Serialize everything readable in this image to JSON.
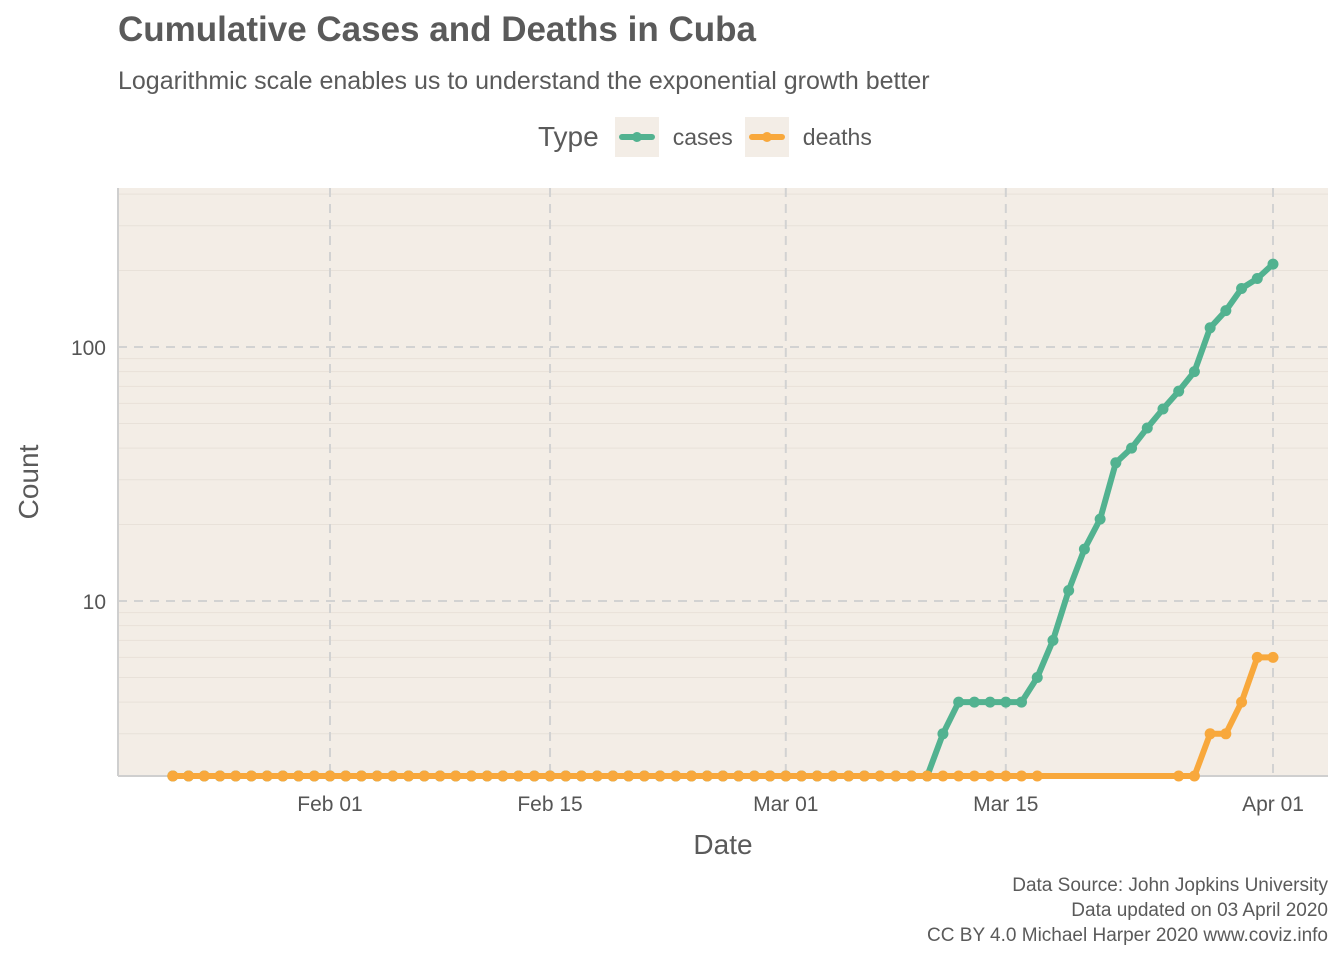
{
  "title": "Cumulative Cases and Deaths in Cuba",
  "subtitle": "Logarithmic scale enables us to understand the exponential growth better",
  "legend": {
    "title": "Type",
    "items": [
      {
        "label": "cases",
        "color": "#52b290"
      },
      {
        "label": "deaths",
        "color": "#f8a83c"
      }
    ]
  },
  "caption": {
    "line1": "Data Source: John Jopkins University",
    "line2": "Data updated on 03 April 2020",
    "line3": "CC BY 4.0 Michael Harper 2020 www.coviz.info"
  },
  "chart_data": {
    "type": "line",
    "title": "Cumulative Cases and Deaths in Cuba",
    "subtitle": "Logarithmic scale enables us to understand the exponential growth better",
    "xlabel": "Date",
    "ylabel": "Count",
    "x_scale": "date",
    "y_scale": "log10",
    "x_ticks": [
      {
        "date": "2020-02-01",
        "label": "Feb 01"
      },
      {
        "date": "2020-02-15",
        "label": "Feb 15"
      },
      {
        "date": "2020-03-01",
        "label": "Mar 01"
      },
      {
        "date": "2020-03-15",
        "label": "Mar 15"
      },
      {
        "date": "2020-04-01",
        "label": "Apr 01"
      }
    ],
    "y_ticks": [
      {
        "value": 10,
        "label": "10"
      },
      {
        "value": 100,
        "label": "100"
      }
    ],
    "grid": true,
    "legend_position": "top",
    "background_color": "#f3ede6",
    "series": [
      {
        "name": "cases",
        "color": "#52b290",
        "points": [
          {
            "date": "2020-01-22",
            "value": 0
          },
          {
            "date": "2020-01-23",
            "value": 0
          },
          {
            "date": "2020-01-24",
            "value": 0
          },
          {
            "date": "2020-01-25",
            "value": 0
          },
          {
            "date": "2020-01-26",
            "value": 0
          },
          {
            "date": "2020-01-27",
            "value": 0
          },
          {
            "date": "2020-01-28",
            "value": 0
          },
          {
            "date": "2020-01-29",
            "value": 0
          },
          {
            "date": "2020-01-30",
            "value": 0
          },
          {
            "date": "2020-01-31",
            "value": 0
          },
          {
            "date": "2020-02-01",
            "value": 0
          },
          {
            "date": "2020-02-02",
            "value": 0
          },
          {
            "date": "2020-02-03",
            "value": 0
          },
          {
            "date": "2020-02-04",
            "value": 0
          },
          {
            "date": "2020-02-05",
            "value": 0
          },
          {
            "date": "2020-02-06",
            "value": 0
          },
          {
            "date": "2020-02-07",
            "value": 0
          },
          {
            "date": "2020-02-08",
            "value": 0
          },
          {
            "date": "2020-02-09",
            "value": 0
          },
          {
            "date": "2020-02-10",
            "value": 0
          },
          {
            "date": "2020-02-11",
            "value": 0
          },
          {
            "date": "2020-02-12",
            "value": 0
          },
          {
            "date": "2020-02-13",
            "value": 0
          },
          {
            "date": "2020-02-14",
            "value": 0
          },
          {
            "date": "2020-02-15",
            "value": 0
          },
          {
            "date": "2020-02-16",
            "value": 0
          },
          {
            "date": "2020-02-17",
            "value": 0
          },
          {
            "date": "2020-02-18",
            "value": 0
          },
          {
            "date": "2020-02-19",
            "value": 0
          },
          {
            "date": "2020-02-20",
            "value": 0
          },
          {
            "date": "2020-02-21",
            "value": 0
          },
          {
            "date": "2020-02-22",
            "value": 0
          },
          {
            "date": "2020-02-23",
            "value": 0
          },
          {
            "date": "2020-02-24",
            "value": 0
          },
          {
            "date": "2020-02-25",
            "value": 0
          },
          {
            "date": "2020-02-26",
            "value": 0
          },
          {
            "date": "2020-02-27",
            "value": 0
          },
          {
            "date": "2020-02-28",
            "value": 0
          },
          {
            "date": "2020-02-29",
            "value": 0
          },
          {
            "date": "2020-03-01",
            "value": 0
          },
          {
            "date": "2020-03-02",
            "value": 0
          },
          {
            "date": "2020-03-03",
            "value": 0
          },
          {
            "date": "2020-03-04",
            "value": 0
          },
          {
            "date": "2020-03-05",
            "value": 0
          },
          {
            "date": "2020-03-06",
            "value": 0
          },
          {
            "date": "2020-03-07",
            "value": 0
          },
          {
            "date": "2020-03-08",
            "value": 0
          },
          {
            "date": "2020-03-09",
            "value": 0
          },
          {
            "date": "2020-03-10",
            "value": 0
          },
          {
            "date": "2020-03-11",
            "value": 3
          },
          {
            "date": "2020-03-12",
            "value": 4
          },
          {
            "date": "2020-03-13",
            "value": 4
          },
          {
            "date": "2020-03-14",
            "value": 4
          },
          {
            "date": "2020-03-15",
            "value": 4
          },
          {
            "date": "2020-03-16",
            "value": 4
          },
          {
            "date": "2020-03-17",
            "value": 5
          },
          {
            "date": "2020-03-18",
            "value": 7
          },
          {
            "date": "2020-03-19",
            "value": 11
          },
          {
            "date": "2020-03-20",
            "value": 16
          },
          {
            "date": "2020-03-21",
            "value": 21
          },
          {
            "date": "2020-03-22",
            "value": 35
          },
          {
            "date": "2020-03-23",
            "value": 40
          },
          {
            "date": "2020-03-24",
            "value": 48
          },
          {
            "date": "2020-03-25",
            "value": 57
          },
          {
            "date": "2020-03-26",
            "value": 67
          },
          {
            "date": "2020-03-27",
            "value": 80
          },
          {
            "date": "2020-03-28",
            "value": 119
          },
          {
            "date": "2020-03-29",
            "value": 139
          },
          {
            "date": "2020-03-30",
            "value": 170
          },
          {
            "date": "2020-03-31",
            "value": 186
          },
          {
            "date": "2020-04-01",
            "value": 212
          }
        ]
      },
      {
        "name": "deaths",
        "color": "#f8a83c",
        "points": [
          {
            "date": "2020-01-22",
            "value": 0
          },
          {
            "date": "2020-01-23",
            "value": 0
          },
          {
            "date": "2020-01-24",
            "value": 0
          },
          {
            "date": "2020-01-25",
            "value": 0
          },
          {
            "date": "2020-01-26",
            "value": 0
          },
          {
            "date": "2020-01-27",
            "value": 0
          },
          {
            "date": "2020-01-28",
            "value": 0
          },
          {
            "date": "2020-01-29",
            "value": 0
          },
          {
            "date": "2020-01-30",
            "value": 0
          },
          {
            "date": "2020-01-31",
            "value": 0
          },
          {
            "date": "2020-02-01",
            "value": 0
          },
          {
            "date": "2020-02-02",
            "value": 0
          },
          {
            "date": "2020-02-03",
            "value": 0
          },
          {
            "date": "2020-02-04",
            "value": 0
          },
          {
            "date": "2020-02-05",
            "value": 0
          },
          {
            "date": "2020-02-06",
            "value": 0
          },
          {
            "date": "2020-02-07",
            "value": 0
          },
          {
            "date": "2020-02-08",
            "value": 0
          },
          {
            "date": "2020-02-09",
            "value": 0
          },
          {
            "date": "2020-02-10",
            "value": 0
          },
          {
            "date": "2020-02-11",
            "value": 0
          },
          {
            "date": "2020-02-12",
            "value": 0
          },
          {
            "date": "2020-02-13",
            "value": 0
          },
          {
            "date": "2020-02-14",
            "value": 0
          },
          {
            "date": "2020-02-15",
            "value": 0
          },
          {
            "date": "2020-02-16",
            "value": 0
          },
          {
            "date": "2020-02-17",
            "value": 0
          },
          {
            "date": "2020-02-18",
            "value": 0
          },
          {
            "date": "2020-02-19",
            "value": 0
          },
          {
            "date": "2020-02-20",
            "value": 0
          },
          {
            "date": "2020-02-21",
            "value": 0
          },
          {
            "date": "2020-02-22",
            "value": 0
          },
          {
            "date": "2020-02-23",
            "value": 0
          },
          {
            "date": "2020-02-24",
            "value": 0
          },
          {
            "date": "2020-02-25",
            "value": 0
          },
          {
            "date": "2020-02-26",
            "value": 0
          },
          {
            "date": "2020-02-27",
            "value": 0
          },
          {
            "date": "2020-02-28",
            "value": 0
          },
          {
            "date": "2020-02-29",
            "value": 0
          },
          {
            "date": "2020-03-01",
            "value": 0
          },
          {
            "date": "2020-03-02",
            "value": 0
          },
          {
            "date": "2020-03-03",
            "value": 0
          },
          {
            "date": "2020-03-04",
            "value": 0
          },
          {
            "date": "2020-03-05",
            "value": 0
          },
          {
            "date": "2020-03-06",
            "value": 0
          },
          {
            "date": "2020-03-07",
            "value": 0
          },
          {
            "date": "2020-03-08",
            "value": 0
          },
          {
            "date": "2020-03-09",
            "value": 0
          },
          {
            "date": "2020-03-10",
            "value": 0
          },
          {
            "date": "2020-03-11",
            "value": 0
          },
          {
            "date": "2020-03-12",
            "value": 0
          },
          {
            "date": "2020-03-13",
            "value": 0
          },
          {
            "date": "2020-03-14",
            "value": 0
          },
          {
            "date": "2020-03-15",
            "value": 0
          },
          {
            "date": "2020-03-16",
            "value": 0
          },
          {
            "date": "2020-03-17",
            "value": 0
          },
          {
            "date": "2020-03-26",
            "value": 0
          },
          {
            "date": "2020-03-27",
            "value": 0
          },
          {
            "date": "2020-03-28",
            "value": 3
          },
          {
            "date": "2020-03-29",
            "value": 3
          },
          {
            "date": "2020-03-30",
            "value": 4
          },
          {
            "date": "2020-03-31",
            "value": 6
          },
          {
            "date": "2020-04-01",
            "value": 6
          }
        ]
      }
    ]
  }
}
